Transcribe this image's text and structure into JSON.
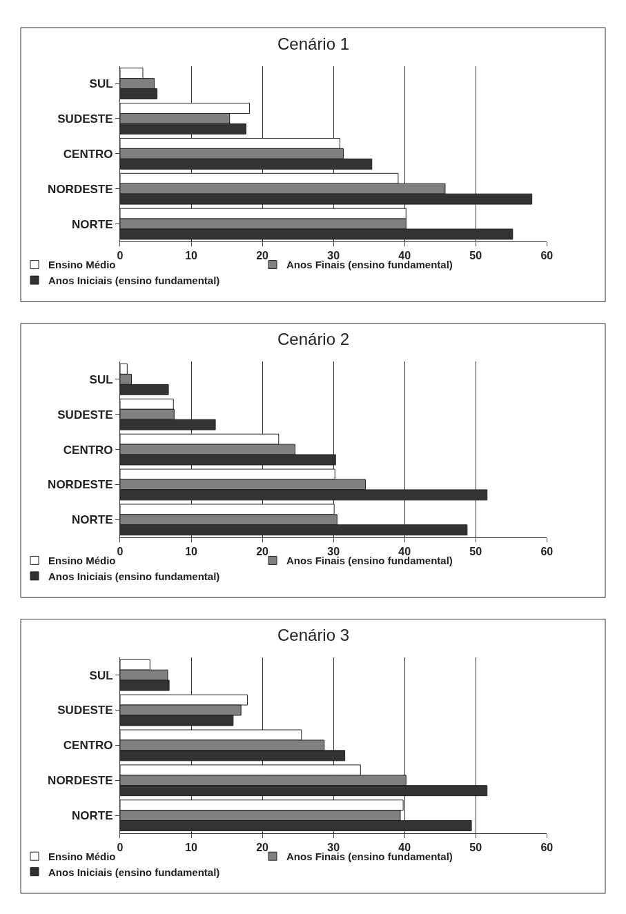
{
  "chart_data": [
    {
      "type": "bar",
      "orientation": "horizontal",
      "title": "Cenário 1",
      "categories": [
        "SUL",
        "SUDESTE",
        "CENTRO",
        "NORDESTE",
        "NORTE"
      ],
      "xlim": [
        0,
        60
      ],
      "xticks": [
        0,
        10,
        20,
        30,
        40,
        50,
        60
      ],
      "grid": "x",
      "legend": "bottom",
      "series": [
        {
          "name": "Ensino Médio",
          "color": "#ffffff",
          "values": [
            3.2,
            18.2,
            30.9,
            39.1,
            40.2
          ]
        },
        {
          "name": "Anos Finais (ensino fundamental)",
          "color": "#808080",
          "values": [
            4.8,
            15.4,
            31.4,
            45.7,
            40.2
          ]
        },
        {
          "name": "Anos Iniciais (ensino fundamental)",
          "color": "#333333",
          "values": [
            5.2,
            17.7,
            35.4,
            57.9,
            55.2
          ]
        }
      ]
    },
    {
      "type": "bar",
      "orientation": "horizontal",
      "title": "Cenário 2",
      "categories": [
        "SUL",
        "SUDESTE",
        "CENTRO",
        "NORDESTE",
        "NORTE"
      ],
      "xlim": [
        0,
        60
      ],
      "xticks": [
        0,
        10,
        20,
        30,
        40,
        50,
        60
      ],
      "grid": "x",
      "legend": "bottom",
      "series": [
        {
          "name": "Ensino Médio",
          "color": "#ffffff",
          "values": [
            1.0,
            7.5,
            22.3,
            30.2,
            30.1
          ]
        },
        {
          "name": "Anos Finais (ensino fundamental)",
          "color": "#808080",
          "values": [
            1.6,
            7.6,
            24.6,
            34.5,
            30.5
          ]
        },
        {
          "name": "Anos Iniciais (ensino fundamental)",
          "color": "#333333",
          "values": [
            6.8,
            13.4,
            30.3,
            51.6,
            48.8
          ]
        }
      ]
    },
    {
      "type": "bar",
      "orientation": "horizontal",
      "title": "Cenário 3",
      "categories": [
        "SUL",
        "SUDESTE",
        "CENTRO",
        "NORDESTE",
        "NORTE"
      ],
      "xlim": [
        0,
        60
      ],
      "xticks": [
        0,
        10,
        20,
        30,
        40,
        50,
        60
      ],
      "grid": "x",
      "legend": "bottom",
      "series": [
        {
          "name": "Ensino Médio",
          "color": "#ffffff",
          "values": [
            4.2,
            17.9,
            25.5,
            33.8,
            39.8
          ]
        },
        {
          "name": "Anos Finais (ensino fundamental)",
          "color": "#808080",
          "values": [
            6.7,
            17.0,
            28.7,
            40.2,
            39.4
          ]
        },
        {
          "name": "Anos Iniciais (ensino fundamental)",
          "color": "#333333",
          "values": [
            6.9,
            15.9,
            31.6,
            51.6,
            49.4
          ]
        }
      ]
    }
  ]
}
